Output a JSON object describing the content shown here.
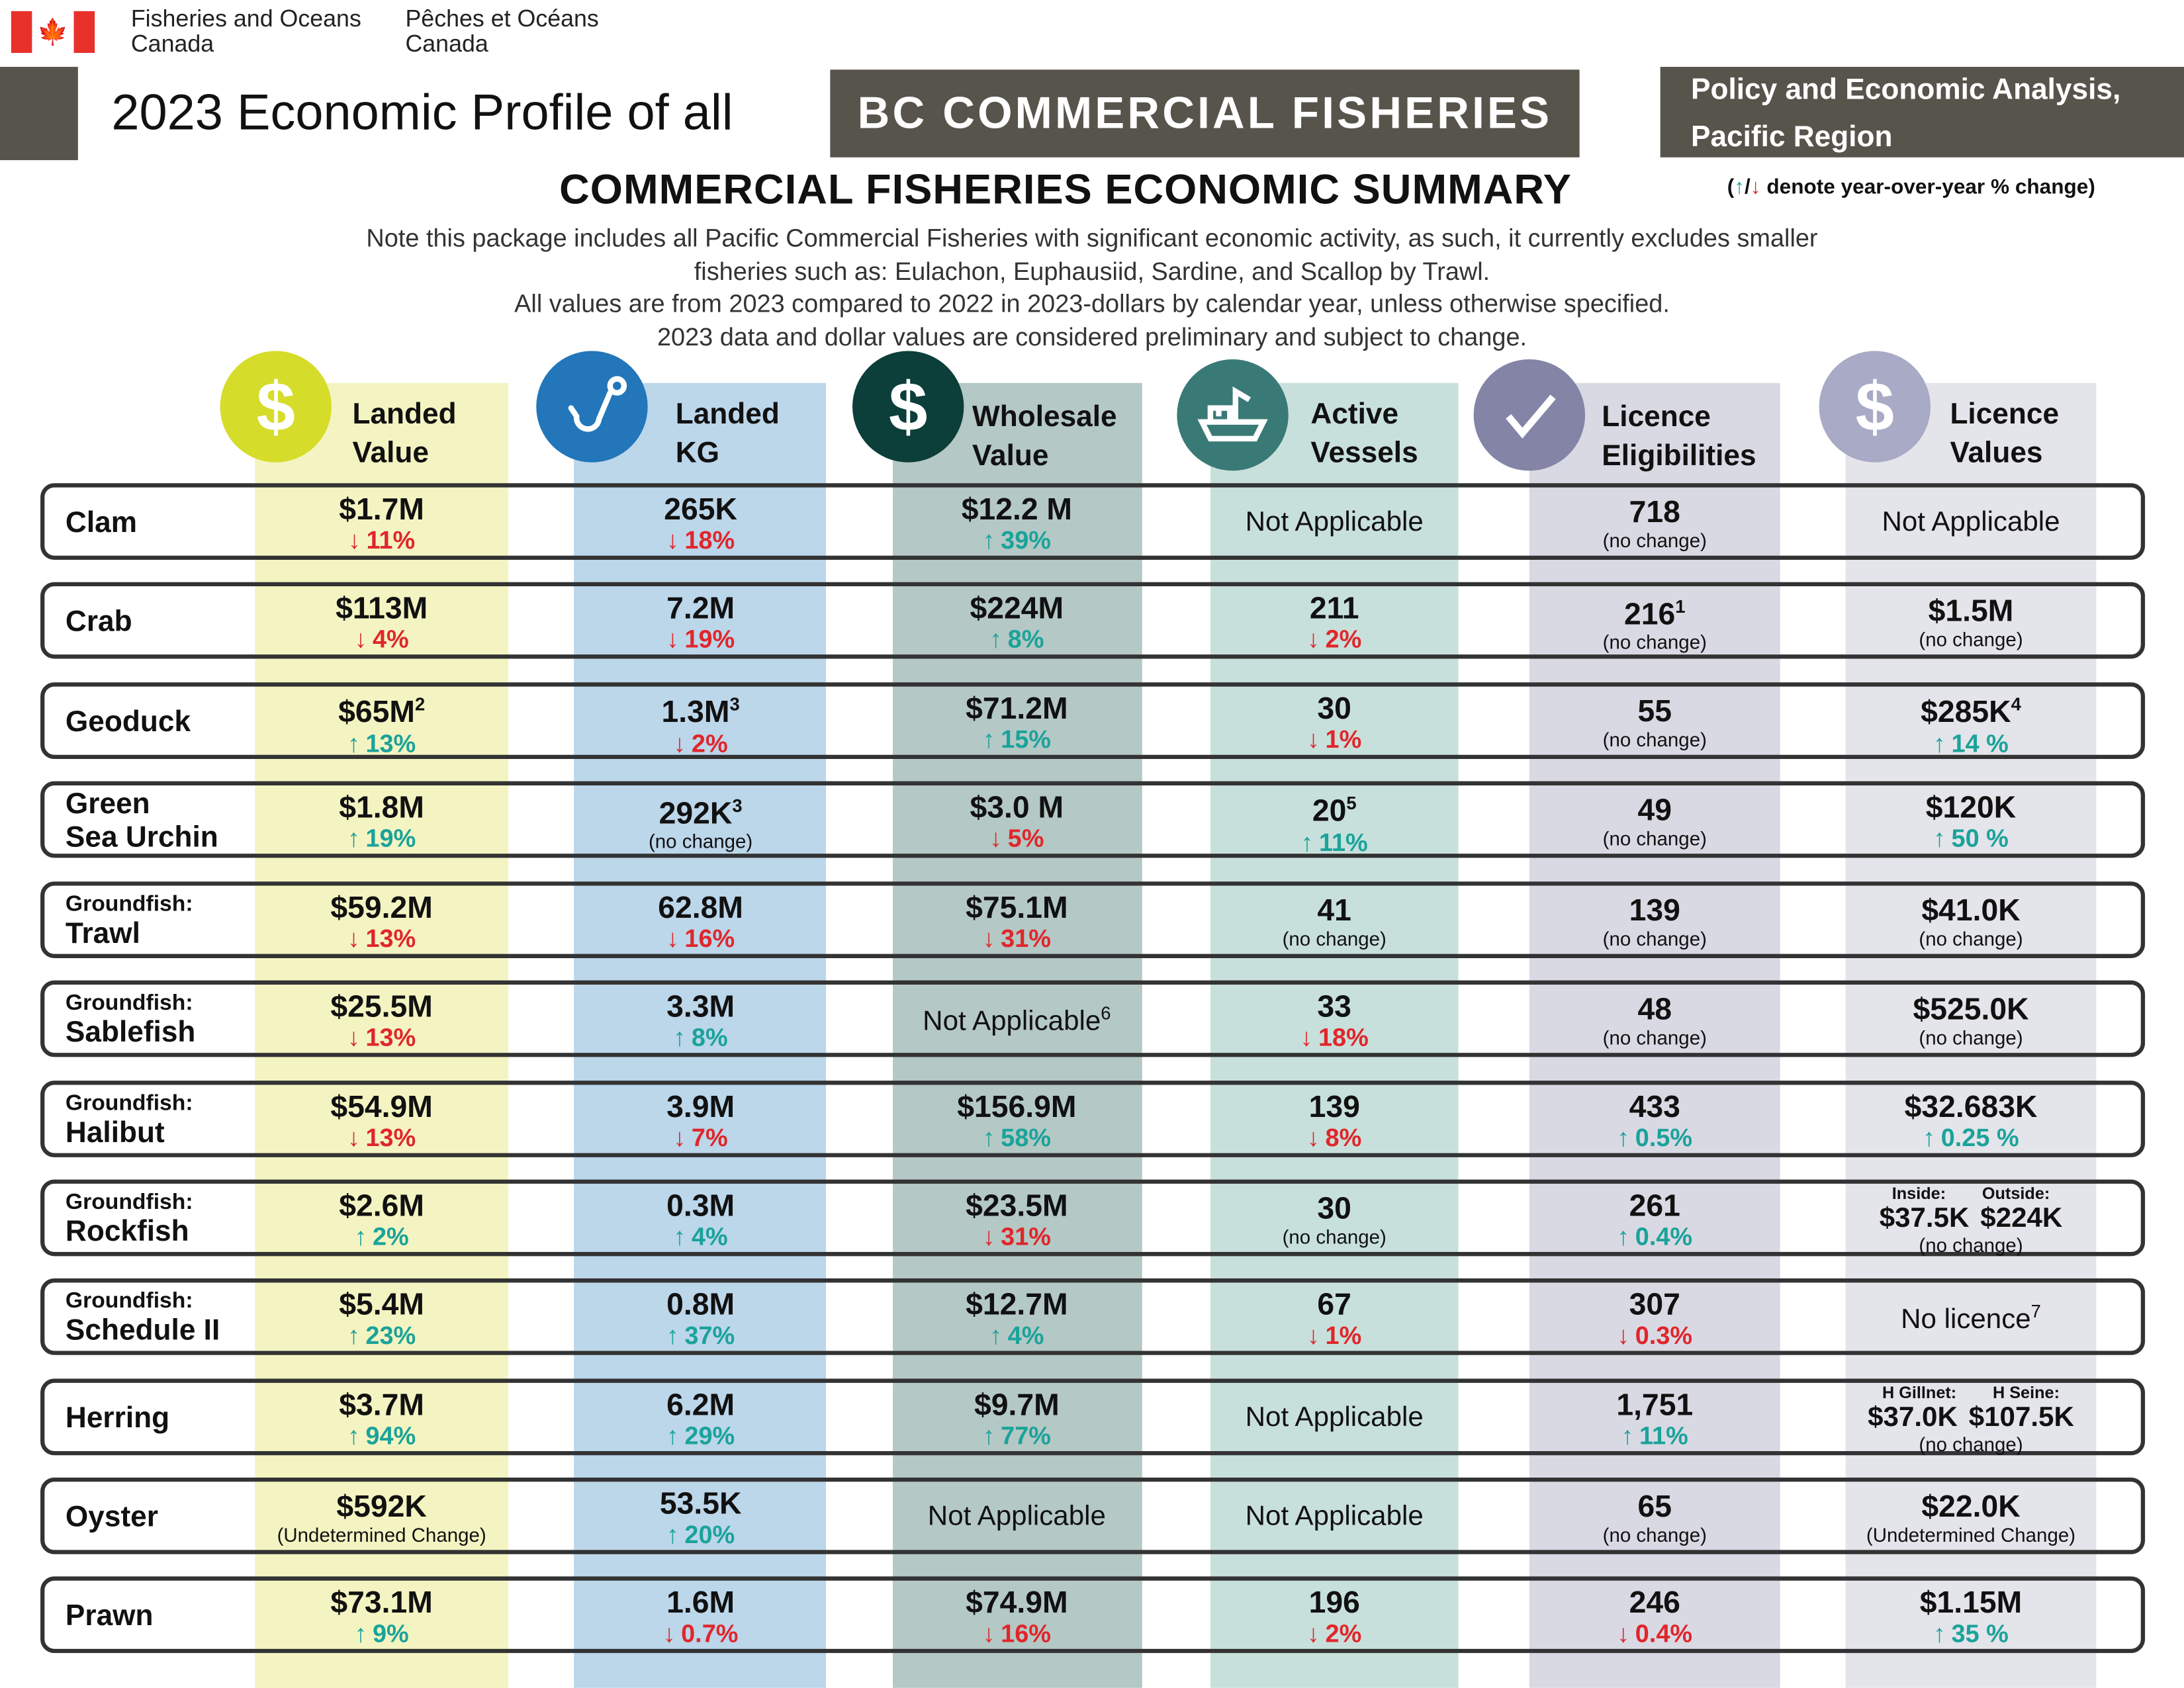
{
  "header": {
    "org_en": [
      "Fisheries and Oceans",
      "Canada"
    ],
    "org_fr": [
      "Pêches et Océans",
      "Canada"
    ],
    "title": "2023 Economic Profile of all",
    "title_box": "BC COMMERCIAL FISHERIES",
    "branch": [
      "Policy and Economic Analysis,",
      "Pacific Region"
    ],
    "heading": "COMMERCIAL FISHERIES ECONOMIC SUMMARY",
    "legend": {
      "open": "(",
      "up": "↑",
      "slash": "/",
      "down": "↓",
      "text": " denote year-over-year % change)"
    },
    "notes": [
      "Note this package includes all Pacific Commercial Fisheries with significant economic activity, as such, it currently excludes smaller",
      "fisheries such as: Eulachon, Euphausiid, Sardine, and Scallop by Trawl.",
      "All values are from 2023 compared to 2022 in 2023-dollars by calendar year, unless otherwise specified.",
      "2023 data and dollar values are considered preliminary and subject to change."
    ]
  },
  "colors": {
    "up": "#1aa39a",
    "down": "#e0262b",
    "dark": "#57544c"
  },
  "columns": [
    {
      "label": [
        "Landed",
        "Value"
      ],
      "icon": "dollar-icon",
      "color": "#d6dc2a",
      "strip": "#f4f4c2"
    },
    {
      "label": [
        "Landed",
        "KG"
      ],
      "icon": "fish-hook-icon",
      "color": "#2276b9",
      "strip": "#bcd6ea"
    },
    {
      "label": [
        "Wholesale",
        "Value"
      ],
      "icon": "dollar-icon",
      "color": "#0c3e3a",
      "strip": "#b4c8c5"
    },
    {
      "label": [
        "Active",
        "Vessels"
      ],
      "icon": "boat-icon",
      "color": "#3a7a76",
      "strip": "#c8e0db"
    },
    {
      "label": [
        "Licence",
        "Eligibilities"
      ],
      "icon": "checkmark-icon",
      "color": "#8384a6",
      "strip": "#d9d9e4"
    },
    {
      "label": [
        "Licence",
        "Values"
      ],
      "icon": "dollar-icon",
      "color": "#a9aac5",
      "strip": "#e4e4eb"
    }
  ],
  "rows": [
    {
      "prefix": "",
      "name": [
        "Clam"
      ],
      "cells": [
        {
          "v": "$1.7M",
          "dir": "down",
          "pct": "11%"
        },
        {
          "v": "265K",
          "dir": "down",
          "pct": "18%"
        },
        {
          "v": "$12.2 M",
          "dir": "up",
          "pct": "39%"
        },
        {
          "na": "Not Applicable"
        },
        {
          "v": "718",
          "note": "(no change)"
        },
        {
          "na": "Not Applicable"
        }
      ]
    },
    {
      "prefix": "",
      "name": [
        "Crab"
      ],
      "cells": [
        {
          "v": "$113M",
          "dir": "down",
          "pct": "4%"
        },
        {
          "v": "7.2M",
          "dir": "down",
          "pct": "19%"
        },
        {
          "v": "$224M",
          "dir": "up",
          "pct": "8%"
        },
        {
          "v": "211",
          "dir": "down",
          "pct": "2%"
        },
        {
          "v": "216",
          "sup": "1",
          "note": "(no change)"
        },
        {
          "v": "$1.5M",
          "note": "(no change)"
        }
      ]
    },
    {
      "prefix": "",
      "name": [
        "Geoduck"
      ],
      "cells": [
        {
          "v": "$65M",
          "sup": "2",
          "dir": "up",
          "pct": "13%"
        },
        {
          "v": "1.3M",
          "sup": "3",
          "dir": "down",
          "pct": "2%"
        },
        {
          "v": "$71.2M",
          "dir": "up",
          "pct": "15%"
        },
        {
          "v": "30",
          "dir": "down",
          "pct": "1%"
        },
        {
          "v": "55",
          "note": "(no change)"
        },
        {
          "v": "$285K",
          "sup": "4",
          "dir": "up",
          "pct": "14 %"
        }
      ]
    },
    {
      "prefix": "",
      "name": [
        "Green",
        "Sea Urchin"
      ],
      "cells": [
        {
          "v": "$1.8M",
          "dir": "up",
          "pct": "19%"
        },
        {
          "v": "292K",
          "sup": "3",
          "note": "(no change)"
        },
        {
          "v": "$3.0 M",
          "dir": "down",
          "pct": "5%"
        },
        {
          "v": "20",
          "sup": "5",
          "dir": "up",
          "pct": "11%"
        },
        {
          "v": "49",
          "note": "(no change)"
        },
        {
          "v": "$120K",
          "dir": "up",
          "pct": "50 %"
        }
      ]
    },
    {
      "prefix": "Groundfish:",
      "name": [
        "Trawl"
      ],
      "cells": [
        {
          "v": "$59.2M",
          "dir": "down",
          "pct": "13%"
        },
        {
          "v": "62.8M",
          "dir": "down",
          "pct": "16%"
        },
        {
          "v": "$75.1M",
          "dir": "down",
          "pct": "31%"
        },
        {
          "v": "41",
          "note": "(no change)"
        },
        {
          "v": "139",
          "note": "(no change)"
        },
        {
          "v": "$41.0K",
          "note": "(no change)"
        }
      ]
    },
    {
      "prefix": "Groundfish:",
      "name": [
        "Sablefish"
      ],
      "cells": [
        {
          "v": "$25.5M",
          "dir": "down",
          "pct": "13%"
        },
        {
          "v": "3.3M",
          "dir": "up",
          "pct": "8%"
        },
        {
          "na": "Not Applicable",
          "sup": "6"
        },
        {
          "v": "33",
          "dir": "down",
          "pct": "18%"
        },
        {
          "v": "48",
          "note": "(no change)"
        },
        {
          "v": "$525.0K",
          "note": "(no change)"
        }
      ]
    },
    {
      "prefix": "Groundfish:",
      "name": [
        "Halibut"
      ],
      "cells": [
        {
          "v": "$54.9M",
          "dir": "down",
          "pct": "13%"
        },
        {
          "v": "3.9M",
          "dir": "down",
          "pct": "7%"
        },
        {
          "v": "$156.9M",
          "dir": "up",
          "pct": "58%"
        },
        {
          "v": "139",
          "dir": "down",
          "pct": "8%"
        },
        {
          "v": "433",
          "dir": "up",
          "pct": "0.5%"
        },
        {
          "v": "$32.683K",
          "dir": "up",
          "pct": "0.25 %"
        }
      ]
    },
    {
      "prefix": "Groundfish:",
      "name": [
        "Rockfish"
      ],
      "cells": [
        {
          "v": "$2.6M",
          "dir": "up",
          "pct": "2%"
        },
        {
          "v": "0.3M",
          "dir": "up",
          "pct": "4%"
        },
        {
          "v": "$23.5M",
          "dir": "down",
          "pct": "31%"
        },
        {
          "v": "30",
          "note": "(no change)"
        },
        {
          "v": "261",
          "dir": "up",
          "pct": "0.4%"
        },
        {
          "split_labels": [
            "Inside:",
            "Outside:"
          ],
          "split_values": [
            "$37.5K",
            "$224K"
          ],
          "note": "(no change)"
        }
      ]
    },
    {
      "prefix": "Groundfish:",
      "name": [
        "Schedule II"
      ],
      "cells": [
        {
          "v": "$5.4M",
          "dir": "up",
          "pct": "23%"
        },
        {
          "v": "0.8M",
          "dir": "up",
          "pct": "37%"
        },
        {
          "v": "$12.7M",
          "dir": "up",
          "pct": "4%"
        },
        {
          "v": "67",
          "dir": "down",
          "pct": "1%"
        },
        {
          "v": "307",
          "dir": "down",
          "pct": "0.3%"
        },
        {
          "na": "No licence",
          "sup": "7"
        }
      ]
    },
    {
      "prefix": "",
      "name": [
        "Herring"
      ],
      "cells": [
        {
          "v": "$3.7M",
          "dir": "up",
          "pct": "94%"
        },
        {
          "v": "6.2M",
          "dir": "up",
          "pct": "29%"
        },
        {
          "v": "$9.7M",
          "dir": "up",
          "pct": "77%"
        },
        {
          "na": "Not Applicable"
        },
        {
          "v": "1,751",
          "dir": "up",
          "pct": "11%"
        },
        {
          "split_labels": [
            "H Gillnet:",
            "H Seine:"
          ],
          "split_values": [
            "$37.0K",
            "$107.5K"
          ],
          "note": "(no change)"
        }
      ]
    },
    {
      "prefix": "",
      "name": [
        "Oyster"
      ],
      "cells": [
        {
          "v": "$592K",
          "note": "(Undetermined Change)"
        },
        {
          "v": "53.5K",
          "dir": "up",
          "pct": "20%"
        },
        {
          "na": "Not Applicable"
        },
        {
          "na": "Not Applicable"
        },
        {
          "v": "65",
          "note": "(no change)"
        },
        {
          "v": "$22.0K",
          "note": "(Undetermined Change)"
        }
      ]
    },
    {
      "prefix": "",
      "name": [
        "Prawn"
      ],
      "cells": [
        {
          "v": "$73.1M",
          "dir": "up",
          "pct": "9%"
        },
        {
          "v": "1.6M",
          "dir": "down",
          "pct": "0.7%"
        },
        {
          "v": "$74.9M",
          "dir": "down",
          "pct": "16%"
        },
        {
          "v": "196",
          "dir": "down",
          "pct": "2%"
        },
        {
          "v": "246",
          "dir": "down",
          "pct": "0.4%"
        },
        {
          "v": "$1.15M",
          "dir": "up",
          "pct": "35 %"
        }
      ]
    }
  ]
}
